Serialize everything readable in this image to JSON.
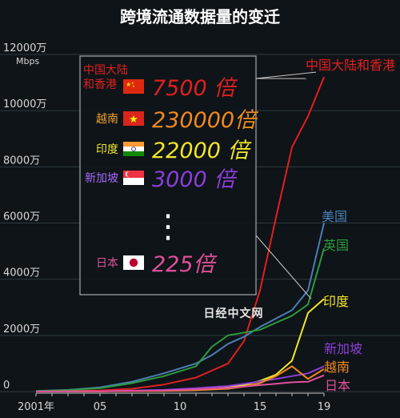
{
  "title": "跨境流通数据量的变迁",
  "watermark": "日经中文网",
  "chart_data": {
    "type": "line",
    "title": "跨境流通数据量的变迁",
    "ylabel_unit": "Mbps",
    "ylim": [
      0,
      12000
    ],
    "yticks": [
      0,
      2000,
      4000,
      6000,
      8000,
      10000,
      12000
    ],
    "ytick_labels": [
      "0",
      "2000万",
      "4000万",
      "6000万",
      "8000万",
      "10000万",
      "12000万"
    ],
    "xlim": [
      2001,
      2019
    ],
    "xticks": [
      2001,
      2005,
      2010,
      2015,
      2019
    ],
    "xtick_labels": [
      "2001年",
      "05",
      "10",
      "15",
      "19"
    ],
    "grid": true,
    "series": [
      {
        "name": "中国大陆和香港",
        "color": "#e02020",
        "x": [
          2001,
          2003,
          2005,
          2007,
          2009,
          2011,
          2013,
          2014,
          2015,
          2016,
          2017,
          2018,
          2019
        ],
        "values": [
          5,
          15,
          40,
          100,
          250,
          500,
          1000,
          1800,
          3600,
          6200,
          8700,
          9800,
          11200
        ]
      },
      {
        "name": "美国",
        "color": "#4a7fb5",
        "x": [
          2001,
          2003,
          2005,
          2007,
          2009,
          2011,
          2012,
          2013,
          2014,
          2015,
          2016,
          2017,
          2018,
          2019
        ],
        "values": [
          20,
          60,
          150,
          350,
          650,
          1000,
          1300,
          1700,
          1950,
          2300,
          2600,
          2900,
          3600,
          6000
        ]
      },
      {
        "name": "英国",
        "color": "#2e9a3e",
        "x": [
          2001,
          2003,
          2005,
          2007,
          2009,
          2011,
          2012,
          2013,
          2014,
          2015,
          2016,
          2017,
          2018,
          2019
        ],
        "values": [
          15,
          50,
          120,
          300,
          550,
          900,
          1600,
          2000,
          2100,
          2200,
          2450,
          2700,
          3100,
          5100
        ]
      },
      {
        "name": "印度",
        "color": "#f2e62a",
        "x": [
          2001,
          2005,
          2009,
          2011,
          2013,
          2014,
          2015,
          2016,
          2017,
          2018,
          2019
        ],
        "values": [
          0,
          10,
          40,
          80,
          150,
          230,
          380,
          600,
          1100,
          2800,
          3300
        ]
      },
      {
        "name": "新加坡",
        "color": "#8a3fd8",
        "x": [
          2001,
          2005,
          2009,
          2011,
          2013,
          2014,
          2015,
          2016,
          2017,
          2018,
          2019
        ],
        "values": [
          0,
          15,
          60,
          120,
          200,
          280,
          360,
          450,
          550,
          650,
          900
        ]
      },
      {
        "name": "越南",
        "color": "#f08a1e",
        "x": [
          2001,
          2005,
          2009,
          2011,
          2013,
          2014,
          2015,
          2016,
          2017,
          2018,
          2019
        ],
        "values": [
          0,
          5,
          20,
          50,
          100,
          180,
          300,
          550,
          900,
          450,
          800
        ]
      },
      {
        "name": "日本",
        "color": "#e0509a",
        "x": [
          2001,
          2005,
          2009,
          2011,
          2013,
          2014,
          2015,
          2016,
          2017,
          2018,
          2019
        ],
        "values": [
          0,
          10,
          40,
          80,
          130,
          180,
          230,
          280,
          330,
          350,
          580
        ]
      }
    ],
    "growth_table": [
      {
        "name": "中国大陆\n和香港",
        "label_line1": "中国大陆",
        "label_line2": "和香港",
        "multiplier": "7500 倍",
        "color": "#e02020",
        "flag": "china-flag",
        "text_color": "#e02020",
        "label_color": "#e02020"
      },
      {
        "name": "越南",
        "multiplier": "230000倍",
        "color": "#f08a1e",
        "flag": "vietnam-flag",
        "label_color": "#f0a030"
      },
      {
        "name": "印度",
        "multiplier": "22000 倍",
        "color": "#f2e62a",
        "flag": "india-flag",
        "label_color": "#f2e62a"
      },
      {
        "name": "新加坡",
        "multiplier": "3000 倍",
        "color": "#8a3fd8",
        "flag": "singapore-flag",
        "label_color": "#a868ff"
      },
      {
        "name": "日本",
        "multiplier": "225倍",
        "color": "#e0509a",
        "flag": "japan-flag",
        "label_color": "#e0509a"
      }
    ],
    "ellipsis": "⋮"
  }
}
